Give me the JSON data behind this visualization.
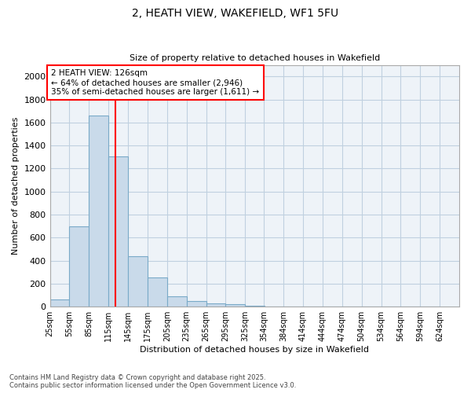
{
  "title_line1": "2, HEATH VIEW, WAKEFIELD, WF1 5FU",
  "title_line2": "Size of property relative to detached houses in Wakefield",
  "xlabel": "Distribution of detached houses by size in Wakefield",
  "ylabel": "Number of detached properties",
  "bar_color": "#c9daea",
  "bar_edge_color": "#7aaac8",
  "background_color": "#eef3f8",
  "grid_color": "#c0d0e0",
  "annotation_text": "2 HEATH VIEW: 126sqm\n← 64% of detached houses are smaller (2,946)\n35% of semi-detached houses are larger (1,611) →",
  "vline_x": 126,
  "vline_color": "red",
  "bins_left_edges": [
    25,
    55,
    85,
    115,
    145,
    175,
    205,
    235,
    265,
    295,
    325,
    354,
    384,
    414,
    444,
    474,
    504,
    534,
    564,
    594
  ],
  "bin_width": 30,
  "bar_heights": [
    65,
    700,
    1660,
    1305,
    440,
    255,
    90,
    50,
    30,
    20,
    5,
    2,
    1,
    0,
    0,
    0,
    0,
    0,
    0,
    0
  ],
  "xtick_labels": [
    "25sqm",
    "55sqm",
    "85sqm",
    "115sqm",
    "145sqm",
    "175sqm",
    "205sqm",
    "235sqm",
    "265sqm",
    "295sqm",
    "325sqm",
    "354sqm",
    "384sqm",
    "414sqm",
    "444sqm",
    "474sqm",
    "504sqm",
    "534sqm",
    "564sqm",
    "594sqm",
    "624sqm"
  ],
  "ylim": [
    0,
    2100
  ],
  "yticks": [
    0,
    200,
    400,
    600,
    800,
    1000,
    1200,
    1400,
    1600,
    1800,
    2000
  ],
  "footer_line1": "Contains HM Land Registry data © Crown copyright and database right 2025.",
  "footer_line2": "Contains public sector information licensed under the Open Government Licence v3.0."
}
